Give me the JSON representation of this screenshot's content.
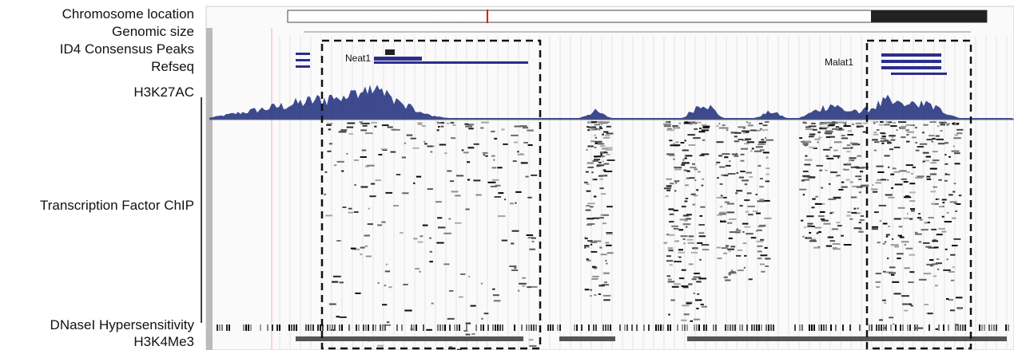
{
  "labels": [
    "Chromosome location",
    "Genomic size",
    "ID4 Consensus Peaks",
    "Refseq",
    "H3K27AC",
    "Transcription Factor ChIP",
    "DNaseI Hypersensitivity",
    "H3K4Me3"
  ],
  "genes": [
    "Neat1",
    "Malat1"
  ]
}
